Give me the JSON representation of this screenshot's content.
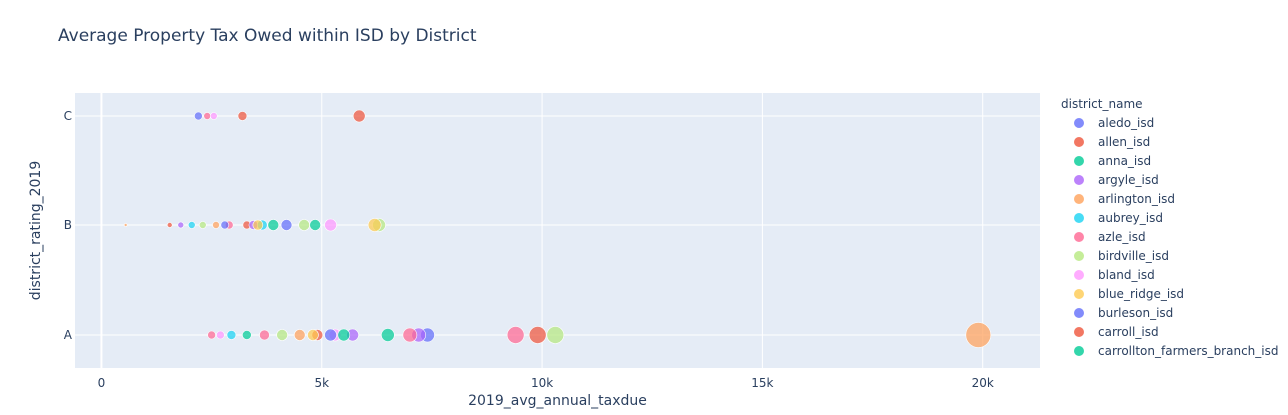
{
  "chart_data": {
    "type": "scatter",
    "title": "Average Property Tax Owed within ISD by District",
    "xlabel": "2019_avg_annual_taxdue",
    "ylabel": "district_rating_2019",
    "x_ticks": [
      0,
      5000,
      10000,
      15000,
      20000
    ],
    "x_tick_labels": [
      "0",
      "5k",
      "10k",
      "15k",
      "20k"
    ],
    "xlim": [
      -600,
      21300
    ],
    "categories": [
      "A",
      "B",
      "C"
    ],
    "grid": true,
    "legend_title": "district_name",
    "legend_placement": "right",
    "series": [
      {
        "name": "aledo_isd",
        "color": "#636efa",
        "points": [
          {
            "x": 7400,
            "y": "A",
            "size": 14
          },
          {
            "x": 4200,
            "y": "B",
            "size": 11
          },
          {
            "x": 2200,
            "y": "C",
            "size": 8
          }
        ]
      },
      {
        "name": "allen_isd",
        "color": "#EF553B",
        "points": [
          {
            "x": 9900,
            "y": "A",
            "size": 17
          },
          {
            "x": 4900,
            "y": "A",
            "size": 11
          },
          {
            "x": 5850,
            "y": "C",
            "size": 12
          },
          {
            "x": 3300,
            "y": "B",
            "size": 8
          }
        ]
      },
      {
        "name": "anna_isd",
        "color": "#00cc96",
        "points": [
          {
            "x": 6500,
            "y": "A",
            "size": 13
          },
          {
            "x": 3900,
            "y": "B",
            "size": 11
          },
          {
            "x": 3300,
            "y": "A",
            "size": 9
          }
        ]
      },
      {
        "name": "argyle_isd",
        "color": "#ab63fa",
        "points": [
          {
            "x": 7200,
            "y": "A",
            "size": 14
          },
          {
            "x": 5700,
            "y": "A",
            "size": 12
          },
          {
            "x": 3450,
            "y": "B",
            "size": 9
          },
          {
            "x": 1800,
            "y": "B",
            "size": 6
          }
        ]
      },
      {
        "name": "arlington_isd",
        "color": "#FFA15A",
        "points": [
          {
            "x": 19900,
            "y": "A",
            "size": 25
          },
          {
            "x": 4500,
            "y": "A",
            "size": 11
          },
          {
            "x": 2600,
            "y": "B",
            "size": 7
          },
          {
            "x": 550,
            "y": "B",
            "size": 3
          }
        ]
      },
      {
        "name": "aubrey_isd",
        "color": "#19d3f3",
        "points": [
          {
            "x": 2950,
            "y": "A",
            "size": 9
          },
          {
            "x": 3650,
            "y": "B",
            "size": 10
          },
          {
            "x": 2050,
            "y": "B",
            "size": 7
          }
        ]
      },
      {
        "name": "azle_isd",
        "color": "#FF6692",
        "points": [
          {
            "x": 9400,
            "y": "A",
            "size": 17
          },
          {
            "x": 7000,
            "y": "A",
            "size": 14
          },
          {
            "x": 3700,
            "y": "A",
            "size": 10
          },
          {
            "x": 2500,
            "y": "A",
            "size": 8
          },
          {
            "x": 2900,
            "y": "B",
            "size": 8
          },
          {
            "x": 2400,
            "y": "C",
            "size": 7
          }
        ]
      },
      {
        "name": "birdville_isd",
        "color": "#B6E880",
        "points": [
          {
            "x": 10300,
            "y": "A",
            "size": 17
          },
          {
            "x": 4100,
            "y": "A",
            "size": 11
          },
          {
            "x": 6300,
            "y": "B",
            "size": 13
          },
          {
            "x": 4600,
            "y": "B",
            "size": 11
          },
          {
            "x": 2300,
            "y": "B",
            "size": 7
          }
        ]
      },
      {
        "name": "bland_isd",
        "color": "#FF97FF",
        "points": [
          {
            "x": 5300,
            "y": "A",
            "size": 12
          },
          {
            "x": 2700,
            "y": "A",
            "size": 8
          },
          {
            "x": 5200,
            "y": "B",
            "size": 12
          },
          {
            "x": 2550,
            "y": "C",
            "size": 7
          }
        ]
      },
      {
        "name": "blue_ridge_isd",
        "color": "#FECB52",
        "points": [
          {
            "x": 4800,
            "y": "A",
            "size": 11
          },
          {
            "x": 6200,
            "y": "B",
            "size": 13
          },
          {
            "x": 3550,
            "y": "B",
            "size": 10
          }
        ]
      },
      {
        "name": "burleson_isd",
        "color": "#636efa",
        "points": [
          {
            "x": 5200,
            "y": "A",
            "size": 12
          },
          {
            "x": 2800,
            "y": "B",
            "size": 8
          }
        ]
      },
      {
        "name": "carroll_isd",
        "color": "#EF553B",
        "points": [
          {
            "x": 1550,
            "y": "B",
            "size": 5
          },
          {
            "x": 3200,
            "y": "C",
            "size": 9
          }
        ]
      },
      {
        "name": "carrollton_farmers_branch_isd",
        "color": "#00cc96",
        "points": [
          {
            "x": 5500,
            "y": "A",
            "size": 12
          },
          {
            "x": 4850,
            "y": "B",
            "size": 11
          }
        ]
      }
    ]
  }
}
